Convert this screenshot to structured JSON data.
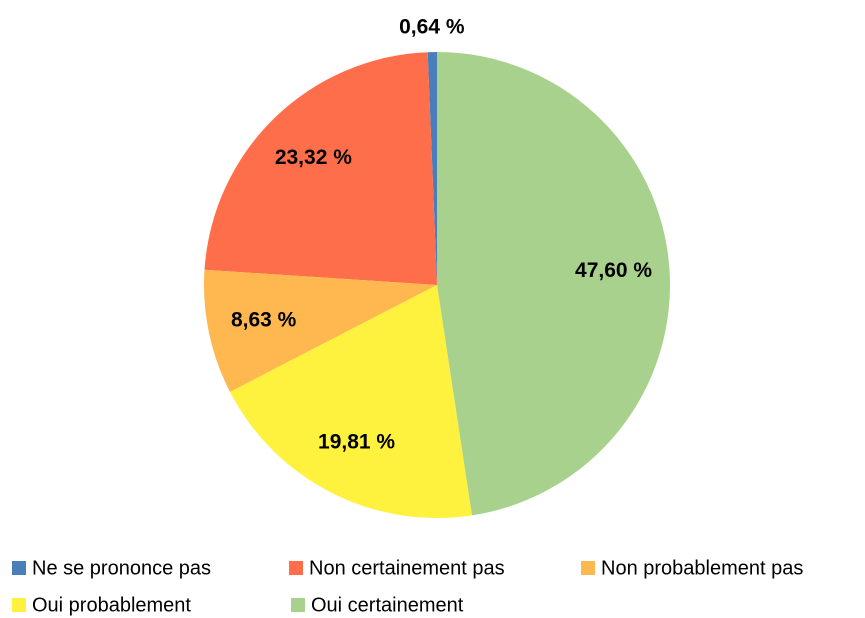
{
  "chart_data": {
    "type": "pie",
    "categories": [
      "Ne se prononce pas",
      "Non certainement pas",
      "Non probablement pas",
      "Oui probablement",
      "Oui certainement"
    ],
    "values": [
      0.64,
      23.32,
      8.63,
      19.81,
      47.6
    ],
    "value_labels": [
      "0,64 %",
      "23,32 %",
      "8,63 %",
      "19,81 %",
      "47,60 %"
    ],
    "colors": [
      "#4a7ebb",
      "#ff6e4a",
      "#ffb850",
      "#fff23e",
      "#a9d18e"
    ],
    "legend": "bottom"
  }
}
